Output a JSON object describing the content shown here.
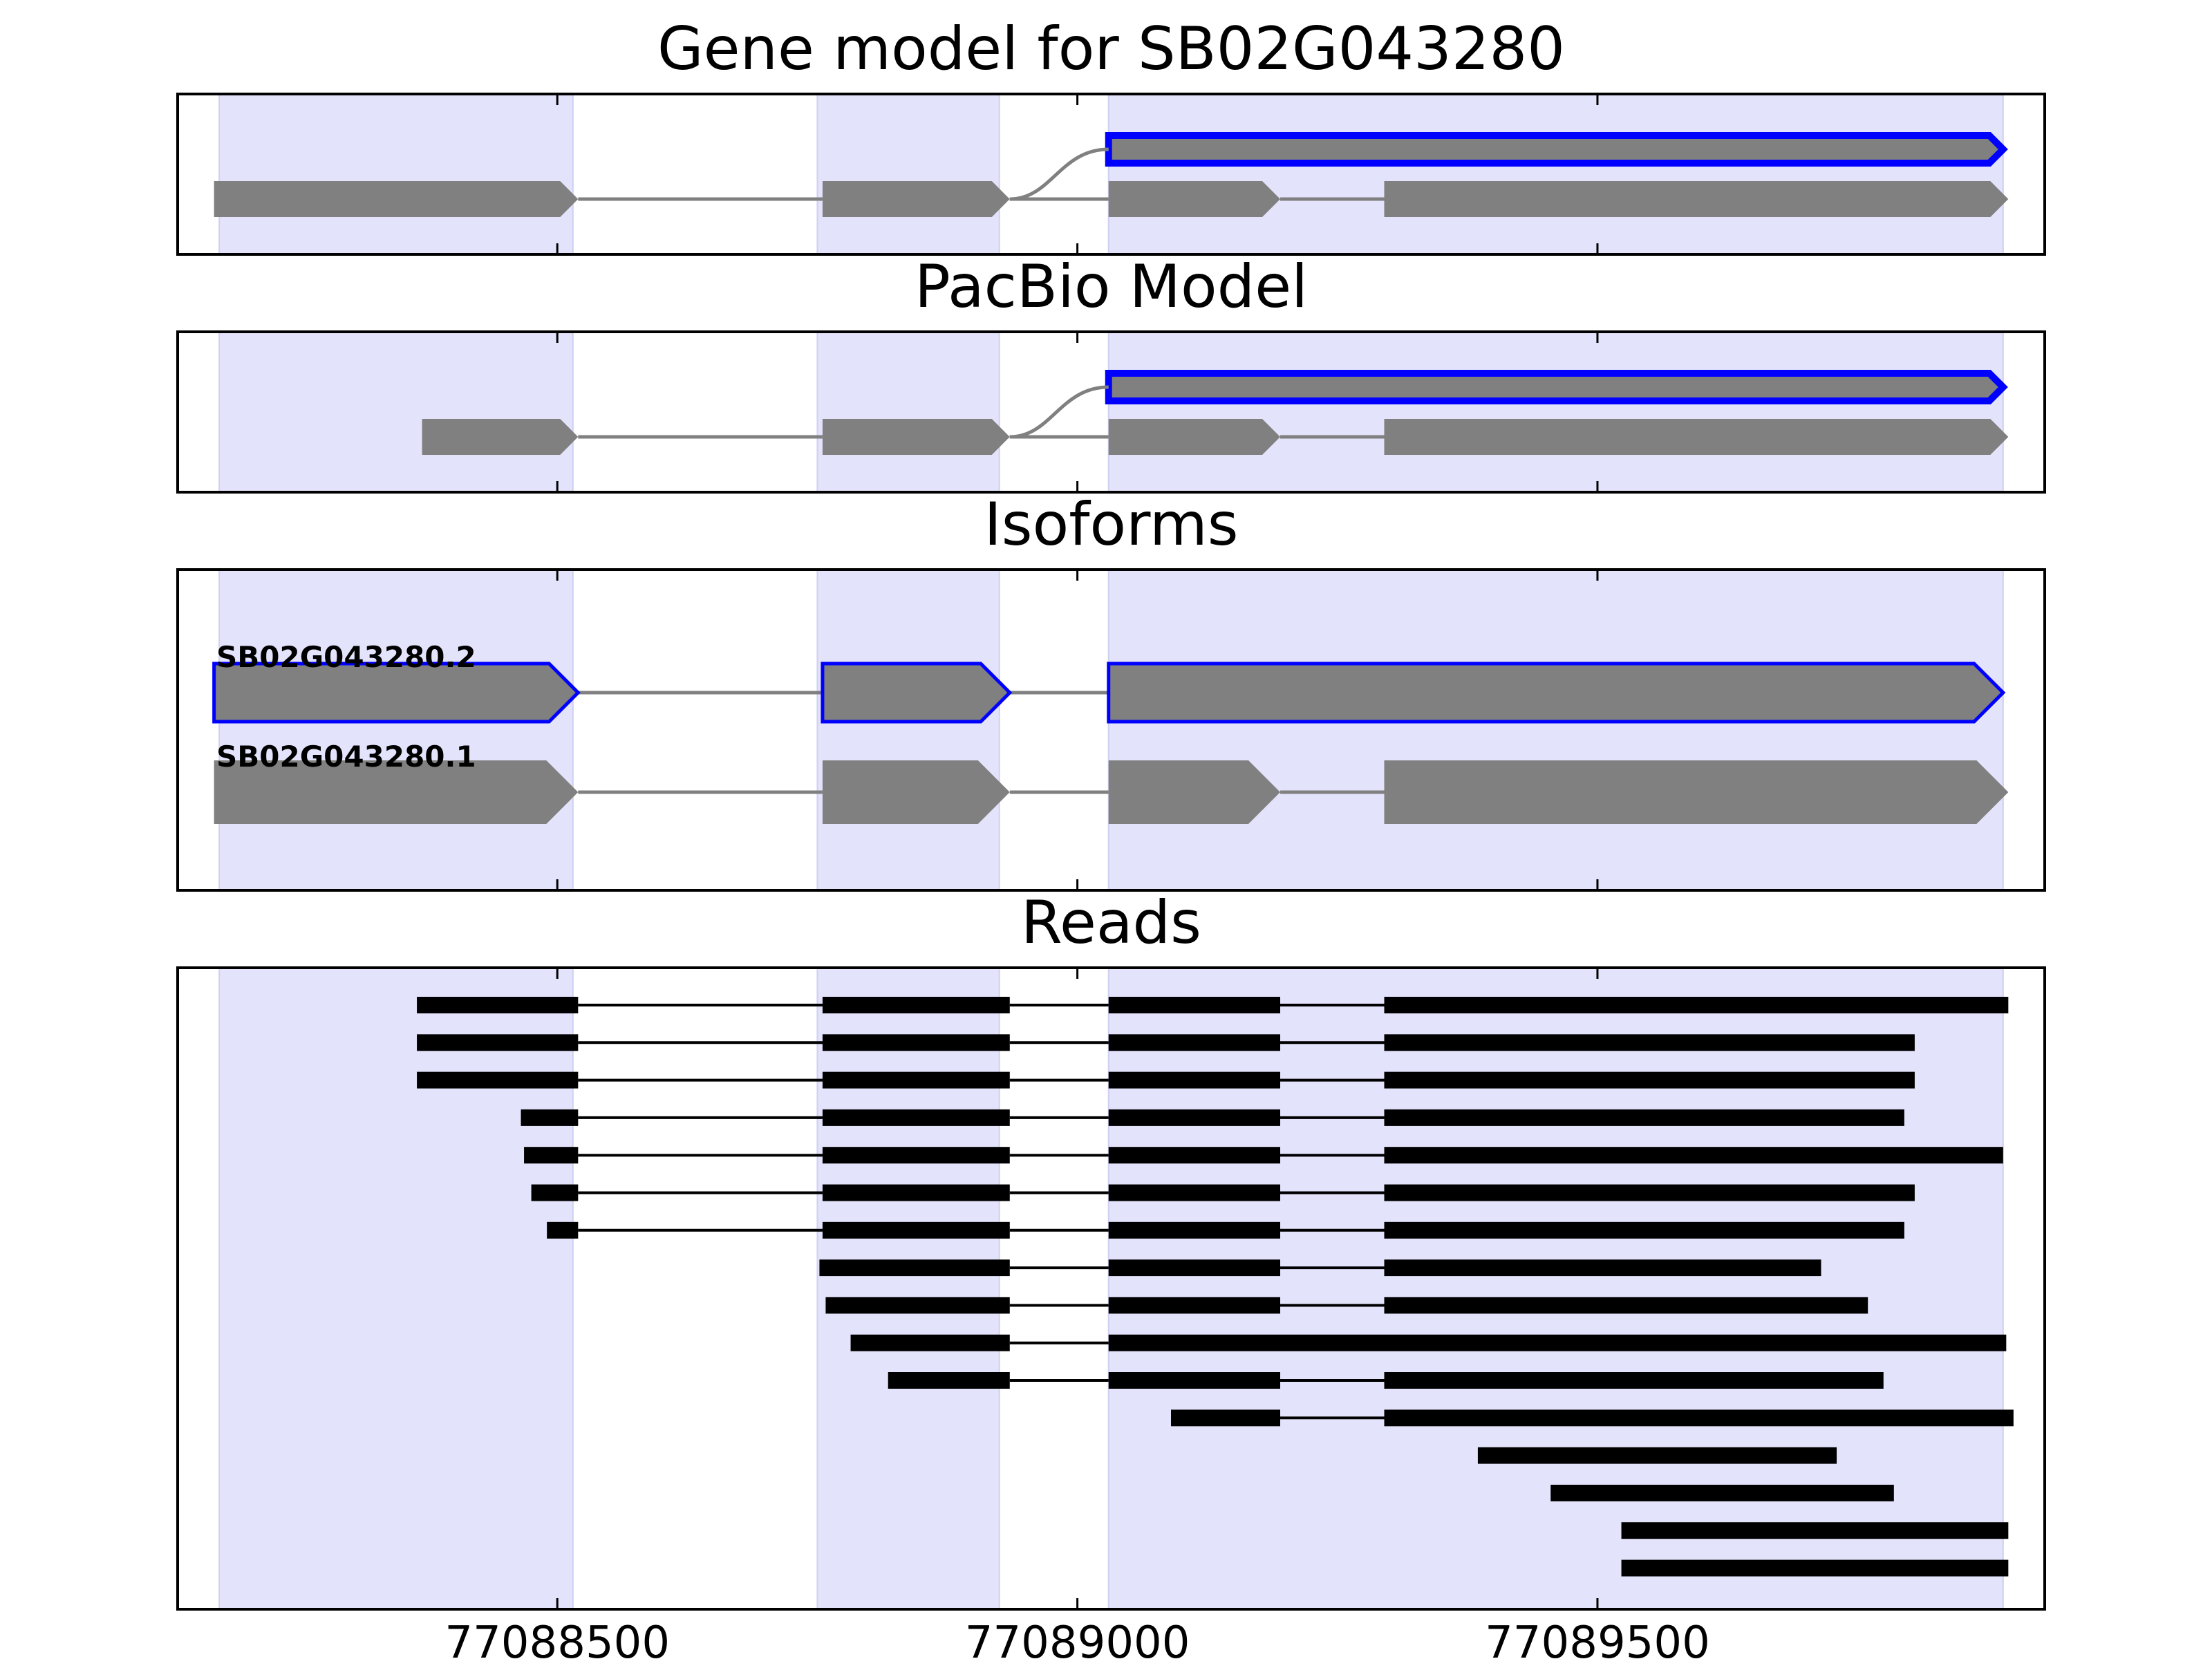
{
  "colors": {
    "background": "#ffffff",
    "exon_fill": "#808080",
    "highlight_edge": "#0000ff",
    "region_shade": "#e3e3fb",
    "read": "#000000",
    "intron": "#808080",
    "frame": "#000000"
  },
  "chart_data": {
    "type": "gene_track",
    "xlim": [
      77088135,
      77089930
    ],
    "x_ticks": [
      77088500,
      77089000,
      77089500
    ],
    "shaded_regions": [
      [
        77088175,
        77088515
      ],
      [
        77088750,
        77088925
      ],
      [
        77089030,
        77089890
      ]
    ],
    "panels": [
      {
        "title": "Gene model for SB02G043280",
        "rows": [
          {
            "label": "",
            "highlight": true,
            "exons": [
              [
                77089030,
                77089890
              ]
            ]
          },
          {
            "label": "",
            "highlight": false,
            "exons": [
              [
                77088170,
                77088520
              ],
              [
                77088755,
                77088935
              ],
              [
                77089030,
                77089195
              ],
              [
                77089295,
                77089895
              ]
            ]
          }
        ]
      },
      {
        "title": "PacBio Model",
        "rows": [
          {
            "label": "",
            "highlight": true,
            "exons": [
              [
                77089030,
                77089890
              ]
            ]
          },
          {
            "label": "",
            "highlight": false,
            "exons": [
              [
                77088370,
                77088520
              ],
              [
                77088755,
                77088935
              ],
              [
                77089030,
                77089195
              ],
              [
                77089295,
                77089895
              ]
            ]
          }
        ]
      },
      {
        "title": "Isoforms",
        "rows": [
          {
            "label": "SB02G043280.2",
            "highlight": true,
            "exons": [
              [
                77088170,
                77088520
              ],
              [
                77088755,
                77088935
              ],
              [
                77089030,
                77089890
              ]
            ]
          },
          {
            "label": "SB02G043280.1",
            "highlight": false,
            "exons": [
              [
                77088170,
                77088520
              ],
              [
                77088755,
                77088935
              ],
              [
                77089030,
                77089195
              ],
              [
                77089295,
                77089895
              ]
            ]
          }
        ]
      },
      {
        "title": "Reads",
        "reads": [
          [
            [
              77088365,
              77088520
            ],
            [
              77088755,
              77088935
            ],
            [
              77089030,
              77089195
            ],
            [
              77089295,
              77089895
            ]
          ],
          [
            [
              77088365,
              77088520
            ],
            [
              77088755,
              77088935
            ],
            [
              77089030,
              77089195
            ],
            [
              77089295,
              77089805
            ]
          ],
          [
            [
              77088365,
              77088520
            ],
            [
              77088755,
              77088935
            ],
            [
              77089030,
              77089195
            ],
            [
              77089295,
              77089805
            ]
          ],
          [
            [
              77088465,
              77088520
            ],
            [
              77088755,
              77088935
            ],
            [
              77089030,
              77089195
            ],
            [
              77089295,
              77089795
            ]
          ],
          [
            [
              77088468,
              77088520
            ],
            [
              77088755,
              77088935
            ],
            [
              77089030,
              77089195
            ],
            [
              77089295,
              77089890
            ]
          ],
          [
            [
              77088475,
              77088520
            ],
            [
              77088755,
              77088935
            ],
            [
              77089030,
              77089195
            ],
            [
              77089295,
              77089805
            ]
          ],
          [
            [
              77088490,
              77088520
            ],
            [
              77088755,
              77088935
            ],
            [
              77089030,
              77089195
            ],
            [
              77089295,
              77089795
            ]
          ],
          [
            [
              77088752,
              77088935
            ],
            [
              77089030,
              77089195
            ],
            [
              77089295,
              77089715
            ]
          ],
          [
            [
              77088758,
              77088935
            ],
            [
              77089030,
              77089195
            ],
            [
              77089295,
              77089760
            ]
          ],
          [
            [
              77088782,
              77088935
            ],
            [
              77089030,
              77089893
            ]
          ],
          [
            [
              77088818,
              77088935
            ],
            [
              77089030,
              77089195
            ],
            [
              77089295,
              77089775
            ]
          ],
          [
            [
              77089090,
              77089195
            ],
            [
              77089295,
              77089900
            ]
          ],
          [
            [
              77089385,
              77089730
            ]
          ],
          [
            [
              77089455,
              77089785
            ]
          ],
          [
            [
              77089523,
              77089895
            ]
          ],
          [
            [
              77089523,
              77089895
            ]
          ]
        ]
      }
    ]
  }
}
